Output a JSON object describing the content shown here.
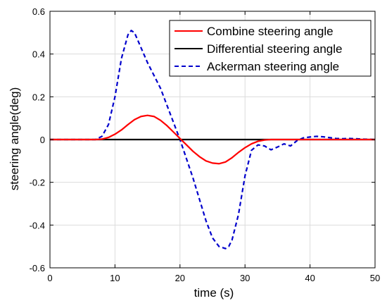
{
  "chart_data": {
    "type": "line",
    "title": "",
    "xlabel": "time (s)",
    "ylabel": "steering angle(deg)",
    "xlim": [
      0,
      50
    ],
    "ylim": [
      -0.6,
      0.6
    ],
    "xticks": [
      0,
      10,
      20,
      30,
      40,
      50
    ],
    "yticks": [
      -0.6,
      -0.4,
      -0.2,
      0,
      0.2,
      0.4,
      0.6
    ],
    "xtick_labels": [
      "0",
      "10",
      "20",
      "30",
      "40",
      "50"
    ],
    "ytick_labels": [
      "-0.6",
      "-0.4",
      "-0.2",
      "0",
      "0.2",
      "0.4",
      "0.6"
    ],
    "grid": true,
    "legend_position": "top-right",
    "series": [
      {
        "name": "Combine steering angle",
        "color": "#ff0000",
        "style": "solid",
        "x": [
          0,
          7,
          8,
          9,
          10,
          11,
          12,
          13,
          14,
          15,
          16,
          17,
          18,
          19,
          20,
          21,
          22,
          23,
          24,
          25,
          26,
          27,
          28,
          29,
          30,
          31,
          32,
          33,
          34,
          35,
          50
        ],
        "y": [
          0,
          0,
          0.002,
          0.01,
          0.025,
          0.045,
          0.07,
          0.093,
          0.108,
          0.113,
          0.108,
          0.09,
          0.065,
          0.035,
          0.005,
          -0.025,
          -0.055,
          -0.08,
          -0.1,
          -0.11,
          -0.113,
          -0.105,
          -0.085,
          -0.06,
          -0.038,
          -0.02,
          -0.008,
          -0.002,
          0,
          0,
          0
        ]
      },
      {
        "name": "Differential steering angle",
        "color": "#000000",
        "style": "solid",
        "x": [
          0,
          50
        ],
        "y": [
          0,
          0
        ]
      },
      {
        "name": "Ackerman steering angle",
        "color": "#0000cc",
        "style": "dashed",
        "x": [
          0,
          7,
          8,
          9,
          10,
          11,
          12,
          12.5,
          13,
          14,
          15,
          16,
          17,
          18,
          19,
          20,
          21,
          22,
          23,
          24,
          25,
          26,
          27,
          27.5,
          28,
          29,
          30,
          31,
          32,
          33,
          34,
          35,
          36,
          37,
          38,
          39,
          40,
          41,
          42,
          43,
          44,
          45,
          46,
          47,
          48,
          49,
          50
        ],
        "y": [
          0,
          0,
          0.015,
          0.07,
          0.2,
          0.38,
          0.49,
          0.51,
          0.5,
          0.43,
          0.36,
          0.3,
          0.24,
          0.16,
          0.08,
          0,
          -0.09,
          -0.18,
          -0.28,
          -0.38,
          -0.46,
          -0.5,
          -0.51,
          -0.5,
          -0.47,
          -0.35,
          -0.17,
          -0.05,
          -0.025,
          -0.03,
          -0.048,
          -0.035,
          -0.02,
          -0.03,
          -0.005,
          0.008,
          0.012,
          0.015,
          0.013,
          0.009,
          0.005,
          0.004,
          0.005,
          0.004,
          0.002,
          0.001,
          0
        ]
      }
    ]
  }
}
